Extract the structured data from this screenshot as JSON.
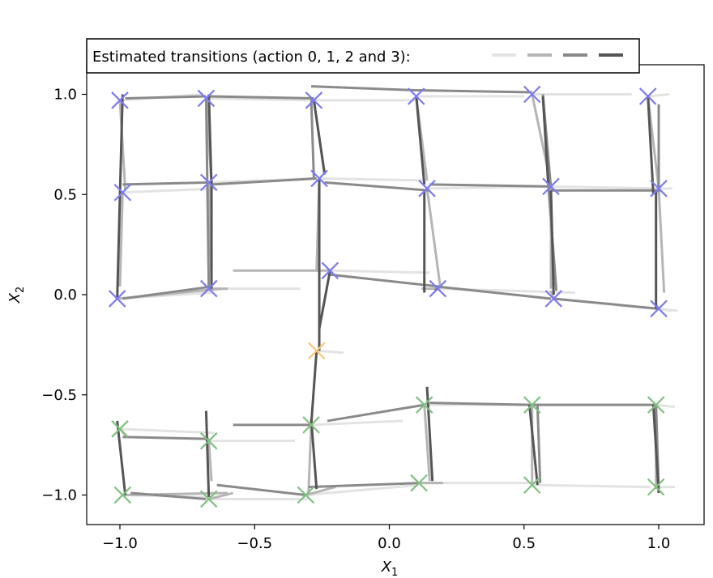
{
  "chart_data": {
    "type": "line",
    "title": "",
    "xlabel": "X",
    "xlabel_sub": "1",
    "ylabel": "X",
    "ylabel_sub": "2",
    "xlim": [
      -1.1,
      1.1
    ],
    "ylim": [
      -1.15,
      1.1
    ],
    "xticks": [
      -1.0,
      -0.5,
      0.0,
      0.5,
      1.0
    ],
    "yticks": [
      -1.0,
      -0.5,
      0.0,
      0.5,
      1.0
    ],
    "xtick_labels": [
      "−1.0",
      "−0.5",
      "0.0",
      "0.5",
      "1.0"
    ],
    "ytick_labels": [
      "−1.0",
      "−0.5",
      "0.0",
      "0.5",
      "1.0"
    ],
    "grid": false,
    "legend": {
      "title": "Estimated transitions (action 0, 1, 2 and 3):",
      "placement": "top-left",
      "entries": [
        "action 0",
        "action 1",
        "action 2",
        "action 3"
      ]
    },
    "action_colors": [
      "#e3e3e3",
      "#b5b5b5",
      "#8a8a8a",
      "#555555"
    ],
    "state_markers": [
      {
        "x": -1.0,
        "y": 0.97,
        "color": "#7b7bf0"
      },
      {
        "x": -0.68,
        "y": 0.98,
        "color": "#7b7bf0"
      },
      {
        "x": -0.28,
        "y": 0.97,
        "color": "#7b7bf0"
      },
      {
        "x": 0.1,
        "y": 0.99,
        "color": "#7b7bf0"
      },
      {
        "x": 0.53,
        "y": 1.0,
        "color": "#7b7bf0"
      },
      {
        "x": 0.96,
        "y": 0.99,
        "color": "#7b7bf0"
      },
      {
        "x": -0.99,
        "y": 0.51,
        "color": "#7b7bf0"
      },
      {
        "x": -0.67,
        "y": 0.56,
        "color": "#7b7bf0"
      },
      {
        "x": -0.26,
        "y": 0.58,
        "color": "#7b7bf0"
      },
      {
        "x": 0.14,
        "y": 0.53,
        "color": "#7b7bf0"
      },
      {
        "x": 0.6,
        "y": 0.54,
        "color": "#7b7bf0"
      },
      {
        "x": 1.0,
        "y": 0.53,
        "color": "#7b7bf0"
      },
      {
        "x": -1.01,
        "y": -0.02,
        "color": "#7b7bf0"
      },
      {
        "x": -0.67,
        "y": 0.03,
        "color": "#7b7bf0"
      },
      {
        "x": -0.22,
        "y": 0.12,
        "color": "#7b7bf0"
      },
      {
        "x": 0.18,
        "y": 0.03,
        "color": "#7b7bf0"
      },
      {
        "x": 0.61,
        "y": -0.02,
        "color": "#7b7bf0"
      },
      {
        "x": 1.0,
        "y": -0.07,
        "color": "#7b7bf0"
      },
      {
        "x": -0.27,
        "y": -0.28,
        "color": "#f5c877"
      },
      {
        "x": -1.0,
        "y": -0.67,
        "color": "#80c080"
      },
      {
        "x": -0.67,
        "y": -0.73,
        "color": "#80c080"
      },
      {
        "x": -0.29,
        "y": -0.65,
        "color": "#80c080"
      },
      {
        "x": 0.13,
        "y": -0.55,
        "color": "#80c080"
      },
      {
        "x": 0.53,
        "y": -0.55,
        "color": "#80c080"
      },
      {
        "x": 0.99,
        "y": -0.55,
        "color": "#80c080"
      },
      {
        "x": -0.99,
        "y": -1.0,
        "color": "#80c080"
      },
      {
        "x": -0.67,
        "y": -1.02,
        "color": "#80c080"
      },
      {
        "x": -0.31,
        "y": -1.0,
        "color": "#80c080"
      },
      {
        "x": 0.11,
        "y": -0.94,
        "color": "#80c080"
      },
      {
        "x": 0.53,
        "y": -0.95,
        "color": "#80c080"
      },
      {
        "x": 0.99,
        "y": -0.96,
        "color": "#80c080"
      }
    ],
    "transitions": [
      {
        "action": 0,
        "x1": -1.0,
        "y1": 0.97,
        "x2": -0.7,
        "y2": 1.0
      },
      {
        "action": 0,
        "x1": -0.68,
        "y1": 0.98,
        "x2": -0.3,
        "y2": 0.97
      },
      {
        "action": 0,
        "x1": -0.28,
        "y1": 0.97,
        "x2": 0.1,
        "y2": 0.97
      },
      {
        "action": 0,
        "x1": 0.1,
        "y1": 0.99,
        "x2": 0.5,
        "y2": 0.99
      },
      {
        "action": 0,
        "x1": 0.53,
        "y1": 1.0,
        "x2": 0.9,
        "y2": 1.0
      },
      {
        "action": 0,
        "x1": 0.96,
        "y1": 0.99,
        "x2": 1.04,
        "y2": 1.0
      },
      {
        "action": 0,
        "x1": -0.99,
        "y1": 0.51,
        "x2": -0.64,
        "y2": 0.53
      },
      {
        "action": 0,
        "x1": -0.67,
        "y1": 0.56,
        "x2": -0.28,
        "y2": 0.58
      },
      {
        "action": 0,
        "x1": -0.26,
        "y1": 0.58,
        "x2": 0.14,
        "y2": 0.57
      },
      {
        "action": 0,
        "x1": 0.14,
        "y1": 0.53,
        "x2": 0.58,
        "y2": 0.54
      },
      {
        "action": 0,
        "x1": 0.6,
        "y1": 0.54,
        "x2": 1.0,
        "y2": 0.53
      },
      {
        "action": 0,
        "x1": 1.0,
        "y1": 0.53,
        "x2": 1.05,
        "y2": 0.53
      },
      {
        "action": 0,
        "x1": -1.01,
        "y1": -0.02,
        "x2": -0.66,
        "y2": 0.01
      },
      {
        "action": 0,
        "x1": -0.67,
        "y1": 0.03,
        "x2": -0.33,
        "y2": 0.03
      },
      {
        "action": 0,
        "x1": -0.22,
        "y1": 0.12,
        "x2": 0.15,
        "y2": 0.11
      },
      {
        "action": 0,
        "x1": 0.18,
        "y1": 0.03,
        "x2": 0.69,
        "y2": 0.01
      },
      {
        "action": 0,
        "x1": 0.61,
        "y1": -0.02,
        "x2": 1.05,
        "y2": -0.08
      },
      {
        "action": 0,
        "x1": 1.0,
        "y1": -0.07,
        "x2": 1.07,
        "y2": -0.08
      },
      {
        "action": 0,
        "x1": -0.27,
        "y1": -0.28,
        "x2": -0.17,
        "y2": -0.29
      },
      {
        "action": 0,
        "x1": -1.0,
        "y1": -0.67,
        "x2": -0.65,
        "y2": -0.69
      },
      {
        "action": 0,
        "x1": -0.67,
        "y1": -0.73,
        "x2": -0.35,
        "y2": -0.73
      },
      {
        "action": 0,
        "x1": -0.29,
        "y1": -0.65,
        "x2": 0.05,
        "y2": -0.63
      },
      {
        "action": 0,
        "x1": 0.13,
        "y1": -0.55,
        "x2": 0.55,
        "y2": -0.55
      },
      {
        "action": 0,
        "x1": 0.53,
        "y1": -0.55,
        "x2": 0.97,
        "y2": -0.55
      },
      {
        "action": 0,
        "x1": 0.99,
        "y1": -0.55,
        "x2": 1.06,
        "y2": -0.56
      },
      {
        "action": 0,
        "x1": -0.99,
        "y1": -1.0,
        "x2": -0.68,
        "y2": -1.01
      },
      {
        "action": 0,
        "x1": -0.67,
        "y1": -1.02,
        "x2": -0.3,
        "y2": -1.02
      },
      {
        "action": 0,
        "x1": -0.31,
        "y1": -1.0,
        "x2": 0.11,
        "y2": -0.95
      },
      {
        "action": 0,
        "x1": 0.11,
        "y1": -0.94,
        "x2": 0.54,
        "y2": -0.94
      },
      {
        "action": 0,
        "x1": 0.53,
        "y1": -0.95,
        "x2": 0.97,
        "y2": -0.96
      },
      {
        "action": 0,
        "x1": 0.99,
        "y1": -0.96,
        "x2": 1.06,
        "y2": -0.96
      },
      {
        "action": 1,
        "x1": -1.0,
        "y1": 0.97,
        "x2": -0.98,
        "y2": 0.52
      },
      {
        "action": 1,
        "x1": -0.68,
        "y1": 0.98,
        "x2": -0.66,
        "y2": 0.55
      },
      {
        "action": 1,
        "x1": -0.28,
        "y1": 0.97,
        "x2": -0.24,
        "y2": 0.6
      },
      {
        "action": 1,
        "x1": 0.1,
        "y1": 0.99,
        "x2": 0.14,
        "y2": 0.57
      },
      {
        "action": 1,
        "x1": 0.53,
        "y1": 1.0,
        "x2": 0.6,
        "y2": 0.55
      },
      {
        "action": 1,
        "x1": 0.96,
        "y1": 0.99,
        "x2": 1.0,
        "y2": 0.53
      },
      {
        "action": 1,
        "x1": -0.99,
        "y1": 0.51,
        "x2": -1.0,
        "y2": 0.04
      },
      {
        "action": 1,
        "x1": -0.67,
        "y1": 0.56,
        "x2": -0.66,
        "y2": 0.06
      },
      {
        "action": 1,
        "x1": -0.26,
        "y1": 0.58,
        "x2": -0.27,
        "y2": 0.12
      },
      {
        "action": 1,
        "x1": 0.14,
        "y1": 0.53,
        "x2": 0.19,
        "y2": 0.03
      },
      {
        "action": 1,
        "x1": 0.6,
        "y1": 0.54,
        "x2": 0.6,
        "y2": 0.03
      },
      {
        "action": 1,
        "x1": 1.0,
        "y1": 0.53,
        "x2": 1.02,
        "y2": 0.01
      },
      {
        "action": 1,
        "x1": -1.01,
        "y1": -0.02,
        "x2": -0.62,
        "y2": 0.03
      },
      {
        "action": 1,
        "x1": -0.67,
        "y1": 0.03,
        "x2": -0.6,
        "y2": 0.03
      },
      {
        "action": 1,
        "x1": -0.22,
        "y1": 0.12,
        "x2": -0.58,
        "y2": 0.12
      },
      {
        "action": 1,
        "x1": 0.18,
        "y1": 0.03,
        "x2": 0.12,
        "y2": 0.03
      },
      {
        "action": 1,
        "x1": 0.61,
        "y1": -0.02,
        "x2": 0.6,
        "y2": 0.02
      },
      {
        "action": 1,
        "x1": 1.0,
        "y1": -0.07,
        "x2": 0.99,
        "y2": -0.05
      },
      {
        "action": 1,
        "x1": -1.0,
        "y1": -0.67,
        "x2": -0.98,
        "y2": -0.7
      },
      {
        "action": 1,
        "x1": -0.67,
        "y1": -0.73,
        "x2": -0.66,
        "y2": -0.93
      },
      {
        "action": 1,
        "x1": -0.29,
        "y1": -0.65,
        "x2": -0.3,
        "y2": -0.99
      },
      {
        "action": 1,
        "x1": 0.13,
        "y1": -0.55,
        "x2": 0.15,
        "y2": -0.93
      },
      {
        "action": 1,
        "x1": 0.53,
        "y1": -0.55,
        "x2": 0.53,
        "y2": -0.94
      },
      {
        "action": 1,
        "x1": 0.99,
        "y1": -0.55,
        "x2": 0.99,
        "y2": -0.97
      },
      {
        "action": 1,
        "x1": -0.99,
        "y1": -1.0,
        "x2": -0.6,
        "y2": -0.99
      },
      {
        "action": 1,
        "x1": -0.67,
        "y1": -1.02,
        "x2": -0.58,
        "y2": -0.99
      },
      {
        "action": 1,
        "x1": -0.31,
        "y1": -1.0,
        "x2": -0.2,
        "y2": -0.96
      },
      {
        "action": 1,
        "x1": 0.11,
        "y1": -0.94,
        "x2": 0.2,
        "y2": -0.94
      },
      {
        "action": 2,
        "x1": -0.98,
        "y1": 0.98,
        "x2": -0.68,
        "y2": 0.99
      },
      {
        "action": 2,
        "x1": -0.67,
        "y1": 0.99,
        "x2": -0.28,
        "y2": 0.98
      },
      {
        "action": 2,
        "x1": -0.29,
        "y1": 1.04,
        "x2": 0.1,
        "y2": 1.02
      },
      {
        "action": 2,
        "x1": 0.1,
        "y1": 1.02,
        "x2": 0.53,
        "y2": 1.01
      },
      {
        "action": 2,
        "x1": 0.57,
        "y1": 1.0,
        "x2": 0.6,
        "y2": 0.53
      },
      {
        "action": 2,
        "x1": -0.99,
        "y1": 0.55,
        "x2": -0.66,
        "y2": 0.56
      },
      {
        "action": 2,
        "x1": -0.66,
        "y1": 0.55,
        "x2": -0.27,
        "y2": 0.58
      },
      {
        "action": 2,
        "x1": -0.24,
        "y1": 0.56,
        "x2": 0.15,
        "y2": 0.52
      },
      {
        "action": 2,
        "x1": 0.15,
        "y1": 0.55,
        "x2": 0.6,
        "y2": 0.54
      },
      {
        "action": 2,
        "x1": 0.6,
        "y1": 0.52,
        "x2": 1.0,
        "y2": 0.52
      },
      {
        "action": 2,
        "x1": 1.0,
        "y1": 0.95,
        "x2": 1.0,
        "y2": 0.51
      },
      {
        "action": 2,
        "x1": -0.99,
        "y1": -0.02,
        "x2": -0.66,
        "y2": 0.04
      },
      {
        "action": 2,
        "x1": -0.68,
        "y1": 0.98,
        "x2": -0.67,
        "y2": 0.03
      },
      {
        "action": 2,
        "x1": -0.22,
        "y1": 0.1,
        "x2": 0.19,
        "y2": 0.04
      },
      {
        "action": 2,
        "x1": 0.18,
        "y1": 0.04,
        "x2": 0.6,
        "y2": -0.02
      },
      {
        "action": 2,
        "x1": 0.61,
        "y1": -0.02,
        "x2": 1.0,
        "y2": -0.07
      },
      {
        "action": 2,
        "x1": 0.59,
        "y1": 0.55,
        "x2": 0.62,
        "y2": 0.02
      },
      {
        "action": 2,
        "x1": -0.99,
        "y1": -0.71,
        "x2": -0.67,
        "y2": -0.72
      },
      {
        "action": 2,
        "x1": -0.58,
        "y1": -0.65,
        "x2": -0.29,
        "y2": -0.65
      },
      {
        "action": 2,
        "x1": -0.23,
        "y1": -0.63,
        "x2": 0.13,
        "y2": -0.55
      },
      {
        "action": 2,
        "x1": 0.15,
        "y1": -0.54,
        "x2": 0.53,
        "y2": -0.55
      },
      {
        "action": 2,
        "x1": 0.53,
        "y1": -0.55,
        "x2": 0.99,
        "y2": -0.55
      },
      {
        "action": 2,
        "x1": -0.96,
        "y1": -0.99,
        "x2": -0.68,
        "y2": -1.02
      },
      {
        "action": 2,
        "x1": -0.64,
        "y1": -0.95,
        "x2": -0.31,
        "y2": -1.0
      },
      {
        "action": 2,
        "x1": -0.3,
        "y1": -0.96,
        "x2": 0.11,
        "y2": -0.94
      },
      {
        "action": 2,
        "x1": 0.55,
        "y1": -0.55,
        "x2": 0.56,
        "y2": -0.94
      },
      {
        "action": 2,
        "x1": 0.99,
        "y1": -0.55,
        "x2": 1.0,
        "y2": -0.97
      },
      {
        "action": 2,
        "x1": -0.28,
        "y1": 0.58,
        "x2": -0.29,
        "y2": 0.98
      },
      {
        "action": 3,
        "x1": -0.99,
        "y1": 1.0,
        "x2": -1.01,
        "y2": -0.02
      },
      {
        "action": 3,
        "x1": -0.67,
        "y1": 1.0,
        "x2": -0.66,
        "y2": 0.54
      },
      {
        "action": 3,
        "x1": -0.28,
        "y1": 0.97,
        "x2": -0.24,
        "y2": 0.6
      },
      {
        "action": 3,
        "x1": 0.1,
        "y1": 0.99,
        "x2": 0.13,
        "y2": 0.55
      },
      {
        "action": 3,
        "x1": 0.57,
        "y1": 0.99,
        "x2": 0.59,
        "y2": 0.55
      },
      {
        "action": 3,
        "x1": 0.96,
        "y1": 0.99,
        "x2": 0.98,
        "y2": 0.5
      },
      {
        "action": 3,
        "x1": -0.66,
        "y1": 0.57,
        "x2": -0.66,
        "y2": 0.03
      },
      {
        "action": 3,
        "x1": -0.26,
        "y1": 0.58,
        "x2": -0.26,
        "y2": -0.28
      },
      {
        "action": 3,
        "x1": 0.13,
        "y1": 0.52,
        "x2": 0.13,
        "y2": 0.01
      },
      {
        "action": 3,
        "x1": 0.6,
        "y1": 0.52,
        "x2": 0.61,
        "y2": 0.0
      },
      {
        "action": 3,
        "x1": 0.99,
        "y1": 0.52,
        "x2": 0.99,
        "y2": -0.07
      },
      {
        "action": 3,
        "x1": -0.22,
        "y1": 0.12,
        "x2": -0.26,
        "y2": -0.17
      },
      {
        "action": 3,
        "x1": 0.18,
        "y1": 0.03,
        "x2": 0.17,
        "y2": 0.02
      },
      {
        "action": 3,
        "x1": -0.27,
        "y1": -0.28,
        "x2": -0.29,
        "y2": -0.65
      },
      {
        "action": 3,
        "x1": -1.01,
        "y1": -0.63,
        "x2": -0.98,
        "y2": -1.0
      },
      {
        "action": 3,
        "x1": -0.68,
        "y1": -0.58,
        "x2": -0.67,
        "y2": -1.01
      },
      {
        "action": 3,
        "x1": -0.29,
        "y1": -0.62,
        "x2": -0.27,
        "y2": -0.97
      },
      {
        "action": 3,
        "x1": 0.14,
        "y1": -0.46,
        "x2": 0.16,
        "y2": -0.93
      },
      {
        "action": 3,
        "x1": 0.52,
        "y1": -0.55,
        "x2": 0.55,
        "y2": -0.95
      },
      {
        "action": 3,
        "x1": 0.98,
        "y1": -0.55,
        "x2": 1.0,
        "y2": -0.99
      }
    ]
  }
}
